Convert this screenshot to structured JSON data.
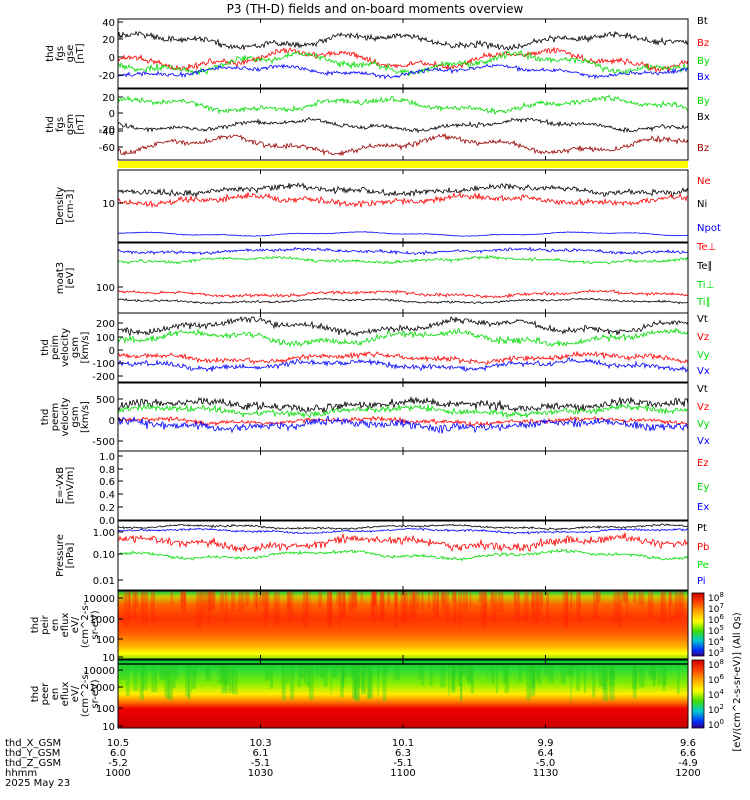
{
  "title": "P3 (TH-D) fields and on-board moments overview",
  "colors": {
    "black": "#000000",
    "red": "#ff0000",
    "green": "#00dd00",
    "blue": "#0000ff",
    "darkred": "#990000",
    "yellow": "#ffff00"
  },
  "chart_data": {
    "type": "line",
    "x_time_ticks": [
      "1000",
      "1030",
      "1100",
      "1130",
      "1200"
    ],
    "x_date": "2025 May 23",
    "ephemeris": [
      {
        "label": "thd_X_GSM",
        "values": [
          "10.5",
          "10.3",
          "10.1",
          "9.9",
          "9.6"
        ]
      },
      {
        "label": "thd_Y_GSM",
        "values": [
          "6.0",
          "6.1",
          "6.3",
          "6.4",
          "6.6"
        ]
      },
      {
        "label": "thd_Z_GSM",
        "values": [
          "-5.2",
          "-5.1",
          "-5.1",
          "-5.0",
          "-4.9"
        ]
      },
      {
        "label": "hhmm",
        "values": [
          "1000",
          "1030",
          "1100",
          "1130",
          "1200"
        ]
      }
    ],
    "panels": [
      {
        "ylabel": [
          "thd",
          "fgs",
          "gse",
          "[nT]"
        ],
        "yticks": [
          "40",
          "20",
          "0",
          "-20"
        ],
        "series": [
          {
            "name": "Bt",
            "color": "black"
          },
          {
            "name": "Bz",
            "color": "red"
          },
          {
            "name": "By",
            "color": "green"
          },
          {
            "name": "Bx",
            "color": "blue"
          }
        ]
      },
      {
        "ylabel": [
          "thd",
          "fgs",
          "gsm",
          "[nT]"
        ],
        "yticks": [
          "20",
          "0",
          "-20",
          "-40",
          "-60"
        ],
        "series": [
          {
            "name": "By",
            "color": "green"
          },
          {
            "name": "Bx",
            "color": "black"
          },
          {
            "name": "Bz",
            "color": "darkred"
          }
        ]
      },
      {
        "ylabel": [
          "Density",
          "[cm-3]"
        ],
        "yticks": [
          "10"
        ],
        "series": [
          {
            "name": "Ne",
            "color": "red"
          },
          {
            "name": "Ni",
            "color": "black"
          },
          {
            "name": "Npot",
            "color": "blue"
          }
        ]
      },
      {
        "ylabel": [
          "moat3",
          "[eV]"
        ],
        "yticks": [
          "100"
        ],
        "series": [
          {
            "name": "Te⊥",
            "color": "red"
          },
          {
            "name": "Te∥",
            "color": "black"
          },
          {
            "name": "Ti⊥",
            "color": "green"
          },
          {
            "name": "Ti∥",
            "color": "green"
          }
        ]
      },
      {
        "ylabel": [
          "thd",
          "peim",
          "velocity",
          "gsm",
          "[km/s]"
        ],
        "yticks": [
          "200",
          "100",
          "0",
          "-100",
          "-200"
        ],
        "series": [
          {
            "name": "Vt",
            "color": "black"
          },
          {
            "name": "Vz",
            "color": "red"
          },
          {
            "name": "Vy",
            "color": "green"
          },
          {
            "name": "Vx",
            "color": "blue"
          }
        ]
      },
      {
        "ylabel": [
          "thd",
          "peem",
          "velocity",
          "gsm",
          "[km/s]"
        ],
        "yticks": [
          "500",
          "0",
          "-500"
        ],
        "series": [
          {
            "name": "Vt",
            "color": "black"
          },
          {
            "name": "Vz",
            "color": "red"
          },
          {
            "name": "Vy",
            "color": "green"
          },
          {
            "name": "Vx",
            "color": "blue"
          }
        ]
      },
      {
        "ylabel": [
          "E=-VxB",
          "[mV/m]"
        ],
        "yticks": [
          "1.0",
          "0.8",
          "0.6",
          "0.4",
          "0.2",
          "0.0"
        ],
        "series": [
          {
            "name": "Ez",
            "color": "red"
          },
          {
            "name": "Ey",
            "color": "green"
          },
          {
            "name": "Ex",
            "color": "blue"
          }
        ]
      },
      {
        "ylabel": [
          "Pressure",
          "[nPa]"
        ],
        "yticks": [
          "1.00",
          "0.10",
          "0.01"
        ],
        "series": [
          {
            "name": "Pt",
            "color": "black"
          },
          {
            "name": "Pb",
            "color": "red"
          },
          {
            "name": "Pe",
            "color": "green"
          },
          {
            "name": "Pi",
            "color": "blue"
          }
        ]
      },
      {
        "ylabel": [
          "thd",
          "peir",
          "en",
          "eflux",
          "eV/",
          "(cm^2-s-",
          "sr-eV)"
        ],
        "yticks": [
          "10000",
          "1000",
          "100",
          "10"
        ],
        "spectrogram": true
      },
      {
        "ylabel": [
          "thd",
          "peer",
          "en",
          "eflux",
          "eV/",
          "(cm^2-s-",
          "sr-eV)"
        ],
        "yticks": [
          "10000",
          "1000",
          "100",
          "10"
        ],
        "spectrogram": true
      }
    ],
    "colorbar": {
      "label": "[eV/(cm^2-s-sr-eV)] (All Qs)",
      "ticks_ion": [
        "10^8",
        "10^7",
        "10^6",
        "10^5",
        "10^4",
        "10^3"
      ],
      "ticks_ele": [
        "10^8",
        "10^6",
        "10^4",
        "10^2",
        "10^0"
      ]
    }
  }
}
